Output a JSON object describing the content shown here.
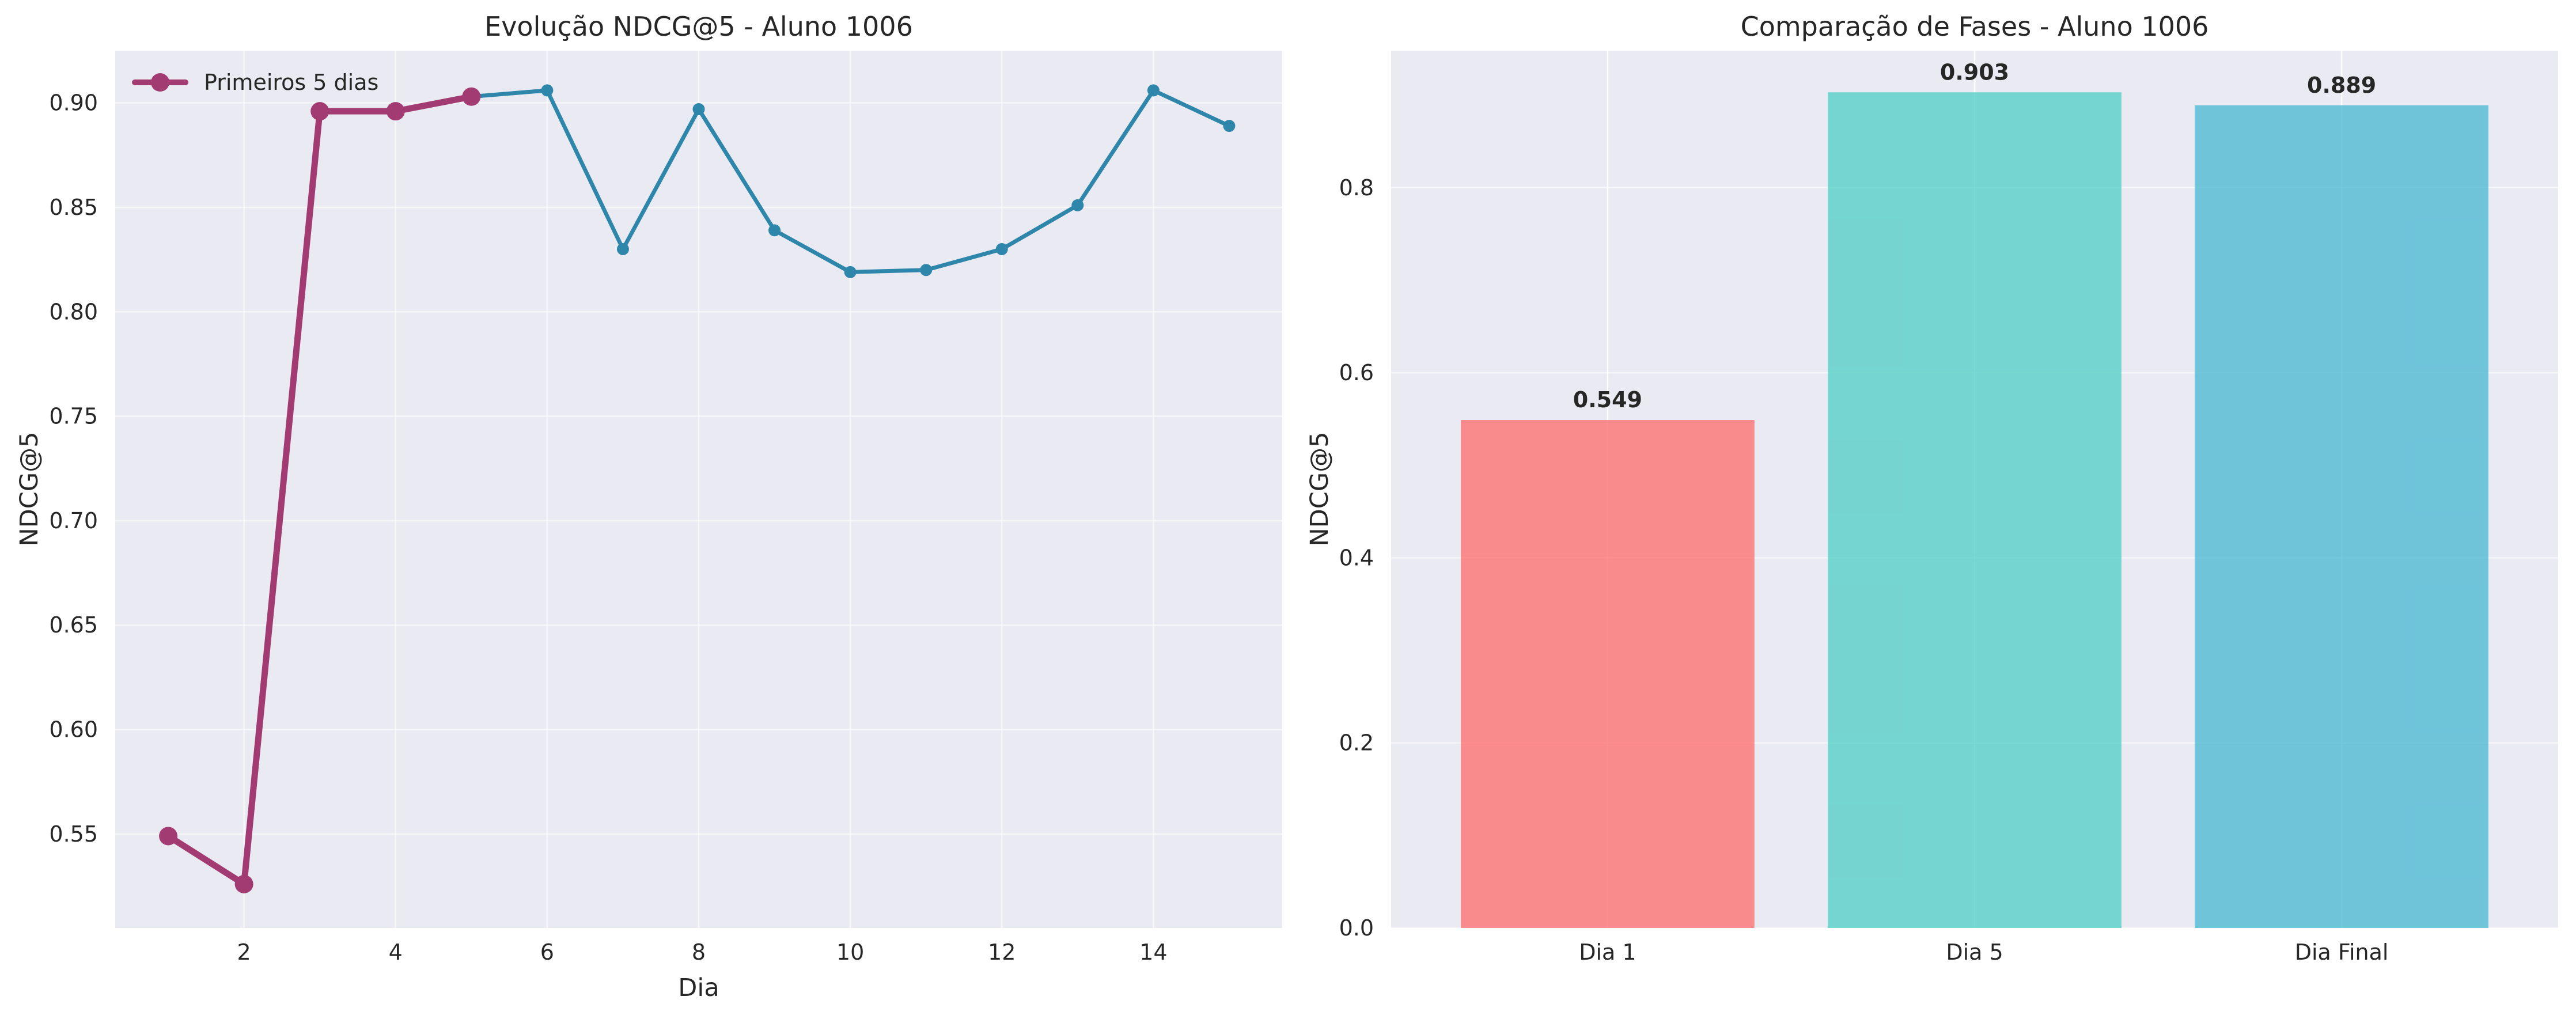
{
  "chart_data": [
    {
      "type": "line",
      "title": "Evolução NDCG@5 - Aluno 1006",
      "xlabel": "Dia",
      "ylabel": "NDCG@5",
      "xlim": [
        0.3,
        15.7
      ],
      "ylim": [
        0.505,
        0.925
      ],
      "xticks": [
        2,
        4,
        6,
        8,
        10,
        12,
        14
      ],
      "xtick_labels": [
        "2",
        "4",
        "6",
        "8",
        "10",
        "12",
        "14"
      ],
      "yticks": [
        0.55,
        0.6,
        0.65,
        0.7,
        0.75,
        0.8,
        0.85,
        0.9
      ],
      "ytick_labels": [
        "0.55",
        "0.60",
        "0.65",
        "0.70",
        "0.75",
        "0.80",
        "0.85",
        "0.90"
      ],
      "grid": true,
      "legend_position": "top-left",
      "series": [
        {
          "name": "",
          "color": "#2e86ab",
          "x": [
            1,
            2,
            3,
            4,
            5,
            6,
            7,
            8,
            9,
            10,
            11,
            12,
            13,
            14,
            15
          ],
          "y": [
            0.549,
            0.526,
            0.896,
            0.896,
            0.903,
            0.906,
            0.83,
            0.897,
            0.839,
            0.819,
            0.82,
            0.83,
            0.851,
            0.906,
            0.889
          ]
        },
        {
          "name": "Primeiros 5 dias",
          "color": "#a23b72",
          "x": [
            1,
            2,
            3,
            4,
            5
          ],
          "y": [
            0.549,
            0.526,
            0.896,
            0.896,
            0.903
          ]
        }
      ]
    },
    {
      "type": "bar",
      "title": "Comparação de Fases - Aluno 1006",
      "xlabel": "",
      "ylabel": "NDCG@5",
      "categories": [
        "Dia 1",
        "Dia 5",
        "Dia Final"
      ],
      "values": [
        0.549,
        0.903,
        0.889
      ],
      "value_labels": [
        "0.549",
        "0.903",
        "0.889"
      ],
      "colors": [
        "#ff6b6b",
        "#4ecdc4",
        "#45b7d1"
      ],
      "ylim": [
        0,
        0.948
      ],
      "yticks": [
        0.0,
        0.2,
        0.4,
        0.6,
        0.8
      ],
      "ytick_labels": [
        "0.0",
        "0.2",
        "0.4",
        "0.6",
        "0.8"
      ],
      "grid": true
    }
  ]
}
